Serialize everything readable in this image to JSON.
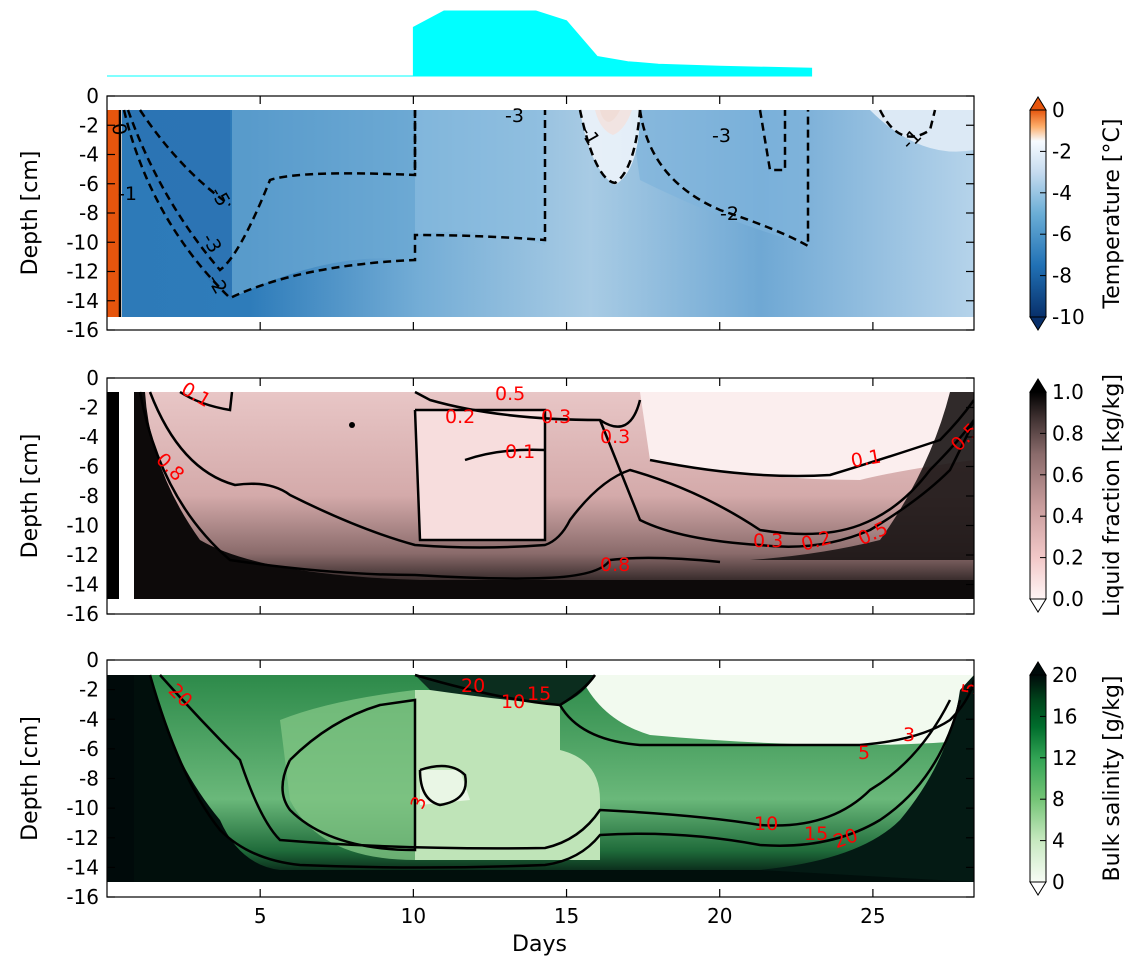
{
  "chart_data": [
    {
      "type": "area",
      "panel": "top-strip",
      "color": "#00ffff",
      "x": [
        0,
        10,
        10,
        11,
        14,
        15,
        16,
        17,
        18,
        20,
        23
      ],
      "y": [
        0,
        0,
        0.75,
        1.0,
        1.0,
        0.85,
        0.3,
        0.22,
        0.18,
        0.15,
        0.12
      ]
    },
    {
      "type": "heatmap",
      "panel": "temperature",
      "ylabel": "Depth [cm]",
      "xlim": [
        0,
        28.3
      ],
      "ylim": [
        -16,
        0
      ],
      "xticks": [],
      "yticks": [
        "0",
        "-2",
        "-4",
        "-6",
        "-8",
        "-10",
        "-12",
        "-14",
        "-16"
      ],
      "colorbar": {
        "label": "Temperature [°C]",
        "ticks": [
          "0",
          "-2",
          "-4",
          "-6",
          "-8",
          "-10"
        ],
        "range": [
          -10,
          0
        ],
        "colors": [
          "#08306b",
          "#2171b5",
          "#6baed6",
          "#c6dbef",
          "#f7fbff",
          "#fdae6b",
          "#e6550d"
        ]
      },
      "contour_labels": [
        "0",
        "-1",
        "-3",
        "-1",
        "-3",
        "-1",
        "-2",
        "-2",
        "-3",
        "-5"
      ]
    },
    {
      "type": "heatmap",
      "panel": "liquid-fraction",
      "ylabel": "Depth [cm]",
      "xlim": [
        0,
        28.3
      ],
      "ylim": [
        -16,
        0
      ],
      "xticks": [],
      "yticks": [
        "0",
        "-2",
        "-4",
        "-6",
        "-8",
        "-10",
        "-12",
        "-14",
        "-16"
      ],
      "colorbar": {
        "label": "Liquid fraction [kg/kg]",
        "ticks": [
          "1.0",
          "0.8",
          "0.6",
          "0.4",
          "0.2",
          "0.0"
        ],
        "range": [
          0,
          1
        ],
        "colors": [
          "#fff5f5",
          "#f2c8c8",
          "#c89c9c",
          "#8a6b6b",
          "#3d2f2f",
          "#000000"
        ]
      },
      "contour_labels": [
        "0.1",
        "0.5",
        "0.2",
        "0.3",
        "0.1",
        "0.3",
        "0.8",
        "0.8",
        "0.3",
        "0.2",
        "0.5",
        "0.1",
        "0.5"
      ]
    },
    {
      "type": "heatmap",
      "panel": "bulk-salinity",
      "xlabel": "Days",
      "ylabel": "Depth [cm]",
      "xlim": [
        0,
        28.3
      ],
      "ylim": [
        -16,
        0
      ],
      "xticks": [
        "5",
        "10",
        "15",
        "20",
        "25"
      ],
      "yticks": [
        "0",
        "-2",
        "-4",
        "-6",
        "-8",
        "-10",
        "-12",
        "-14",
        "-16"
      ],
      "colorbar": {
        "label": "Bulk salinity [g/kg]",
        "ticks": [
          "20",
          "16",
          "12",
          "8",
          "4",
          "0"
        ],
        "range": [
          0,
          20
        ],
        "colors": [
          "#f7fcf5",
          "#c7e9c0",
          "#74c476",
          "#31a354",
          "#006d2c",
          "#00441b",
          "#000a0a"
        ]
      },
      "contour_labels": [
        "20",
        "20",
        "10",
        "15",
        "3",
        "5",
        "3",
        "10",
        "15",
        "20",
        "5"
      ]
    }
  ]
}
